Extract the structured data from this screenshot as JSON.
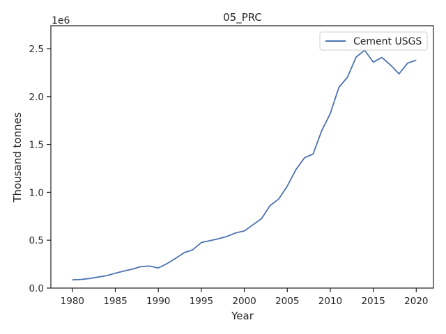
{
  "chart_data": {
    "type": "line",
    "title": "05_PRC",
    "xlabel": "Year",
    "ylabel": "Thousand tonnes",
    "offset_text": "1e6",
    "xlim": [
      1977.5,
      2022
    ],
    "ylim": [
      0,
      2.74
    ],
    "x_ticks": [
      1980,
      1985,
      1990,
      1995,
      2000,
      2005,
      2010,
      2015,
      2020
    ],
    "y_ticks": [
      0.0,
      0.5,
      1.0,
      1.5,
      2.0,
      2.5
    ],
    "y_tick_labels": [
      "0.0",
      "0.5",
      "1.0",
      "1.5",
      "2.0",
      "2.5"
    ],
    "grid": false,
    "legend_position": "upper right",
    "series": [
      {
        "name": "Cement USGS",
        "color": "#4c72b0",
        "x": [
          1980,
          1981,
          1982,
          1983,
          1984,
          1985,
          1986,
          1987,
          1988,
          1989,
          1990,
          1991,
          1992,
          1993,
          1994,
          1995,
          1996,
          1997,
          1998,
          1999,
          2000,
          2001,
          2002,
          2003,
          2004,
          2005,
          2006,
          2007,
          2008,
          2009,
          2010,
          2011,
          2012,
          2013,
          2014,
          2015,
          2016,
          2017,
          2018,
          2019,
          2020
        ],
        "y": [
          0.086,
          0.09,
          0.1,
          0.115,
          0.13,
          0.155,
          0.178,
          0.198,
          0.225,
          0.23,
          0.21,
          0.255,
          0.31,
          0.37,
          0.4,
          0.476,
          0.495,
          0.515,
          0.54,
          0.576,
          0.597,
          0.661,
          0.725,
          0.862,
          0.93,
          1.065,
          1.237,
          1.361,
          1.4,
          1.643,
          1.823,
          2.096,
          2.203,
          2.412,
          2.484,
          2.36,
          2.409,
          2.33,
          2.238,
          2.35,
          2.38
        ]
      }
    ]
  }
}
